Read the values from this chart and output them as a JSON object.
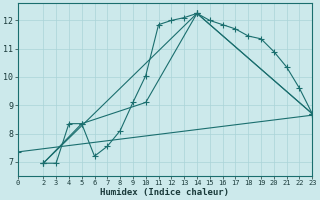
{
  "xlabel": "Humidex (Indice chaleur)",
  "bg_color": "#cce9eb",
  "grid_color": "#aad4d8",
  "line_color": "#1a6e6e",
  "xlim": [
    0,
    23
  ],
  "ylim": [
    6.5,
    12.6
  ],
  "yticks": [
    7,
    8,
    9,
    10,
    11,
    12
  ],
  "xticks": [
    0,
    2,
    3,
    4,
    5,
    6,
    7,
    8,
    9,
    10,
    11,
    12,
    13,
    14,
    15,
    16,
    17,
    18,
    19,
    20,
    21,
    22,
    23
  ],
  "line1_x": [
    2,
    3,
    4,
    5,
    6,
    7,
    8,
    9,
    10,
    11,
    12,
    13,
    14,
    15,
    16,
    17,
    18,
    19,
    20,
    21,
    22,
    23
  ],
  "line1_y": [
    6.95,
    6.95,
    8.35,
    8.35,
    7.2,
    7.55,
    8.1,
    9.1,
    10.05,
    11.85,
    12.0,
    12.1,
    12.25,
    12.0,
    11.85,
    11.7,
    11.45,
    11.35,
    10.9,
    10.35,
    9.6,
    8.7
  ],
  "line2_x": [
    0,
    23
  ],
  "line2_y": [
    7.35,
    8.65
  ],
  "line3_x": [
    2,
    5,
    10,
    14,
    23
  ],
  "line3_y": [
    6.95,
    8.35,
    9.1,
    12.25,
    8.7
  ],
  "line4_x": [
    2,
    14,
    23
  ],
  "line4_y": [
    6.95,
    12.25,
    8.7
  ]
}
